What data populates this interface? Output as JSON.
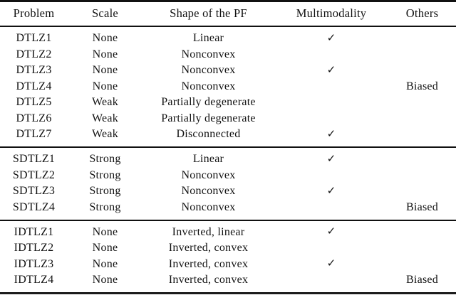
{
  "table": {
    "columns": [
      "Problem",
      "Scale",
      "Shape of the PF",
      "Multimodality",
      "Others"
    ],
    "sections": [
      {
        "rows": [
          {
            "problem": "DTLZ1",
            "scale": "None",
            "shape": "Linear",
            "multimodality": "✓",
            "others": ""
          },
          {
            "problem": "DTLZ2",
            "scale": "None",
            "shape": "Nonconvex",
            "multimodality": "",
            "others": ""
          },
          {
            "problem": "DTLZ3",
            "scale": "None",
            "shape": "Nonconvex",
            "multimodality": "✓",
            "others": ""
          },
          {
            "problem": "DTLZ4",
            "scale": "None",
            "shape": "Nonconvex",
            "multimodality": "",
            "others": "Biased"
          },
          {
            "problem": "DTLZ5",
            "scale": "Weak",
            "shape": "Partially degenerate",
            "multimodality": "",
            "others": ""
          },
          {
            "problem": "DTLZ6",
            "scale": "Weak",
            "shape": "Partially degenerate",
            "multimodality": "",
            "others": ""
          },
          {
            "problem": "DTLZ7",
            "scale": "Weak",
            "shape": "Disconnected",
            "multimodality": "✓",
            "others": ""
          }
        ]
      },
      {
        "rows": [
          {
            "problem": "SDTLZ1",
            "scale": "Strong",
            "shape": "Linear",
            "multimodality": "✓",
            "others": ""
          },
          {
            "problem": "SDTLZ2",
            "scale": "Strong",
            "shape": "Nonconvex",
            "multimodality": "",
            "others": ""
          },
          {
            "problem": "SDTLZ3",
            "scale": "Strong",
            "shape": "Nonconvex",
            "multimodality": "✓",
            "others": ""
          },
          {
            "problem": "SDTLZ4",
            "scale": "Strong",
            "shape": "Nonconvex",
            "multimodality": "",
            "others": "Biased"
          }
        ]
      },
      {
        "rows": [
          {
            "problem": "IDTLZ1",
            "scale": "None",
            "shape": "Inverted, linear",
            "multimodality": "✓",
            "others": ""
          },
          {
            "problem": "IDTLZ2",
            "scale": "None",
            "shape": "Inverted, convex",
            "multimodality": "",
            "others": ""
          },
          {
            "problem": "IDTLZ3",
            "scale": "None",
            "shape": "Inverted, convex",
            "multimodality": "✓",
            "others": ""
          },
          {
            "problem": "IDTLZ4",
            "scale": "None",
            "shape": "Inverted, convex",
            "multimodality": "",
            "others": "Biased"
          }
        ]
      }
    ]
  }
}
